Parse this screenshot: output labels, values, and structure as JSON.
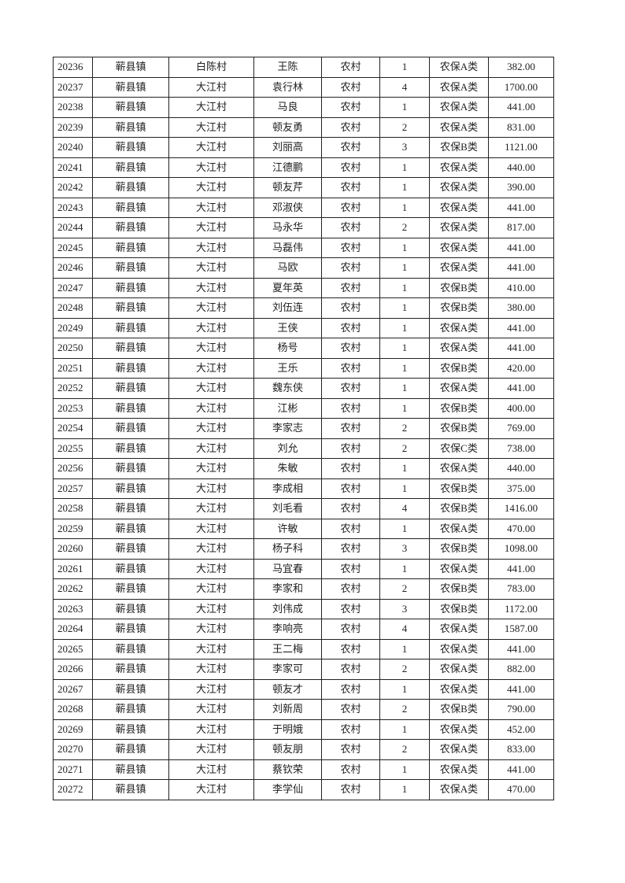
{
  "table": {
    "rows": [
      [
        "20236",
        "蕲县镇",
        "白陈村",
        "王陈",
        "农村",
        "1",
        "农保A类",
        "382.00"
      ],
      [
        "20237",
        "蕲县镇",
        "大江村",
        "袁行林",
        "农村",
        "4",
        "农保A类",
        "1700.00"
      ],
      [
        "20238",
        "蕲县镇",
        "大江村",
        "马良",
        "农村",
        "1",
        "农保A类",
        "441.00"
      ],
      [
        "20239",
        "蕲县镇",
        "大江村",
        "顿友勇",
        "农村",
        "2",
        "农保A类",
        "831.00"
      ],
      [
        "20240",
        "蕲县镇",
        "大江村",
        "刘丽高",
        "农村",
        "3",
        "农保B类",
        "1121.00"
      ],
      [
        "20241",
        "蕲县镇",
        "大江村",
        "江德鹏",
        "农村",
        "1",
        "农保A类",
        "440.00"
      ],
      [
        "20242",
        "蕲县镇",
        "大江村",
        "顿友芹",
        "农村",
        "1",
        "农保A类",
        "390.00"
      ],
      [
        "20243",
        "蕲县镇",
        "大江村",
        "邓淑侠",
        "农村",
        "1",
        "农保A类",
        "441.00"
      ],
      [
        "20244",
        "蕲县镇",
        "大江村",
        "马永华",
        "农村",
        "2",
        "农保A类",
        "817.00"
      ],
      [
        "20245",
        "蕲县镇",
        "大江村",
        "马磊伟",
        "农村",
        "1",
        "农保A类",
        "441.00"
      ],
      [
        "20246",
        "蕲县镇",
        "大江村",
        "马欧",
        "农村",
        "1",
        "农保A类",
        "441.00"
      ],
      [
        "20247",
        "蕲县镇",
        "大江村",
        "夏年英",
        "农村",
        "1",
        "农保B类",
        "410.00"
      ],
      [
        "20248",
        "蕲县镇",
        "大江村",
        "刘伍连",
        "农村",
        "1",
        "农保B类",
        "380.00"
      ],
      [
        "20249",
        "蕲县镇",
        "大江村",
        "王侠",
        "农村",
        "1",
        "农保A类",
        "441.00"
      ],
      [
        "20250",
        "蕲县镇",
        "大江村",
        "杨号",
        "农村",
        "1",
        "农保A类",
        "441.00"
      ],
      [
        "20251",
        "蕲县镇",
        "大江村",
        "王乐",
        "农村",
        "1",
        "农保B类",
        "420.00"
      ],
      [
        "20252",
        "蕲县镇",
        "大江村",
        "魏东侠",
        "农村",
        "1",
        "农保A类",
        "441.00"
      ],
      [
        "20253",
        "蕲县镇",
        "大江村",
        "江彬",
        "农村",
        "1",
        "农保B类",
        "400.00"
      ],
      [
        "20254",
        "蕲县镇",
        "大江村",
        "李家志",
        "农村",
        "2",
        "农保B类",
        "769.00"
      ],
      [
        "20255",
        "蕲县镇",
        "大江村",
        "刘允",
        "农村",
        "2",
        "农保C类",
        "738.00"
      ],
      [
        "20256",
        "蕲县镇",
        "大江村",
        "朱敏",
        "农村",
        "1",
        "农保A类",
        "440.00"
      ],
      [
        "20257",
        "蕲县镇",
        "大江村",
        "李成相",
        "农村",
        "1",
        "农保B类",
        "375.00"
      ],
      [
        "20258",
        "蕲县镇",
        "大江村",
        "刘毛看",
        "农村",
        "4",
        "农保B类",
        "1416.00"
      ],
      [
        "20259",
        "蕲县镇",
        "大江村",
        "许敏",
        "农村",
        "1",
        "农保A类",
        "470.00"
      ],
      [
        "20260",
        "蕲县镇",
        "大江村",
        "杨子科",
        "农村",
        "3",
        "农保B类",
        "1098.00"
      ],
      [
        "20261",
        "蕲县镇",
        "大江村",
        "马宜春",
        "农村",
        "1",
        "农保A类",
        "441.00"
      ],
      [
        "20262",
        "蕲县镇",
        "大江村",
        "李家和",
        "农村",
        "2",
        "农保B类",
        "783.00"
      ],
      [
        "20263",
        "蕲县镇",
        "大江村",
        "刘伟成",
        "农村",
        "3",
        "农保B类",
        "1172.00"
      ],
      [
        "20264",
        "蕲县镇",
        "大江村",
        "李响亮",
        "农村",
        "4",
        "农保A类",
        "1587.00"
      ],
      [
        "20265",
        "蕲县镇",
        "大江村",
        "王二梅",
        "农村",
        "1",
        "农保A类",
        "441.00"
      ],
      [
        "20266",
        "蕲县镇",
        "大江村",
        "李家可",
        "农村",
        "2",
        "农保A类",
        "882.00"
      ],
      [
        "20267",
        "蕲县镇",
        "大江村",
        "顿友才",
        "农村",
        "1",
        "农保A类",
        "441.00"
      ],
      [
        "20268",
        "蕲县镇",
        "大江村",
        "刘新周",
        "农村",
        "2",
        "农保B类",
        "790.00"
      ],
      [
        "20269",
        "蕲县镇",
        "大江村",
        "于明娥",
        "农村",
        "1",
        "农保A类",
        "452.00"
      ],
      [
        "20270",
        "蕲县镇",
        "大江村",
        "顿友朋",
        "农村",
        "2",
        "农保A类",
        "833.00"
      ],
      [
        "20271",
        "蕲县镇",
        "大江村",
        "蔡钦荣",
        "农村",
        "1",
        "农保A类",
        "441.00"
      ],
      [
        "20272",
        "蕲县镇",
        "大江村",
        "李学仙",
        "农村",
        "1",
        "农保A类",
        "470.00"
      ]
    ]
  }
}
